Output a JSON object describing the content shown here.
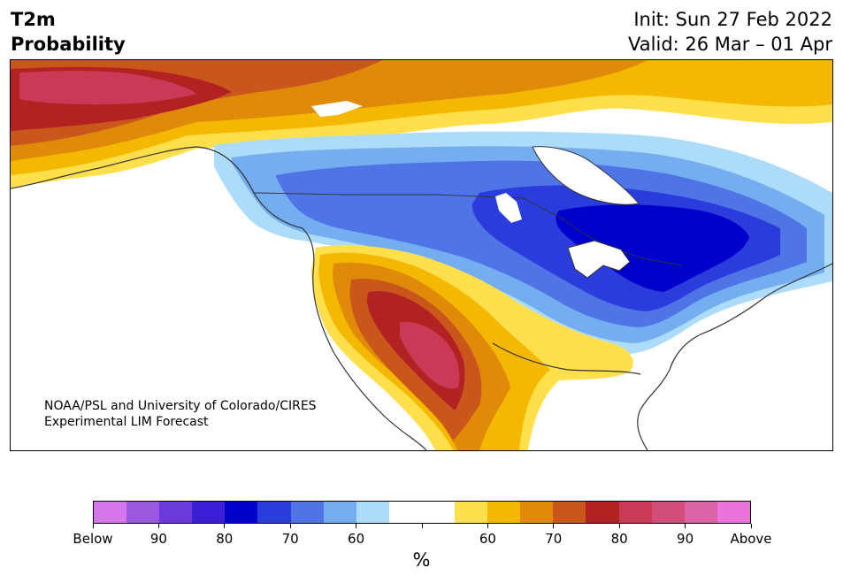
{
  "header": {
    "title_line1": "T2m",
    "title_line2": "Probability",
    "init_label": "Init: Sun 27 Feb 2022",
    "valid_label": "Valid: 26 Mar – 01 Apr"
  },
  "map": {
    "credit_line1": "NOAA/PSL and University of Colorado/CIRES",
    "credit_line2": "Experimental LIM Forecast",
    "land_color": "#ffffff",
    "outline_color": "#333333"
  },
  "colorbar": {
    "colors": [
      "#d577ea",
      "#9a57e0",
      "#6b3ad9",
      "#3b1fd6",
      "#0000cc",
      "#2a3cdc",
      "#4f74e6",
      "#75aef0",
      "#acdcfa",
      "#ffffff",
      "#ffffff",
      "#ffe04c",
      "#f5b800",
      "#e08a0a",
      "#c9561a",
      "#b22222",
      "#c83a55",
      "#d24e7a",
      "#db64a8",
      "#ea74dc"
    ],
    "tick_labels": [
      "Below",
      "90",
      "80",
      "70",
      "60",
      "",
      "60",
      "70",
      "80",
      "90",
      "Above"
    ],
    "unit_label": "%"
  }
}
